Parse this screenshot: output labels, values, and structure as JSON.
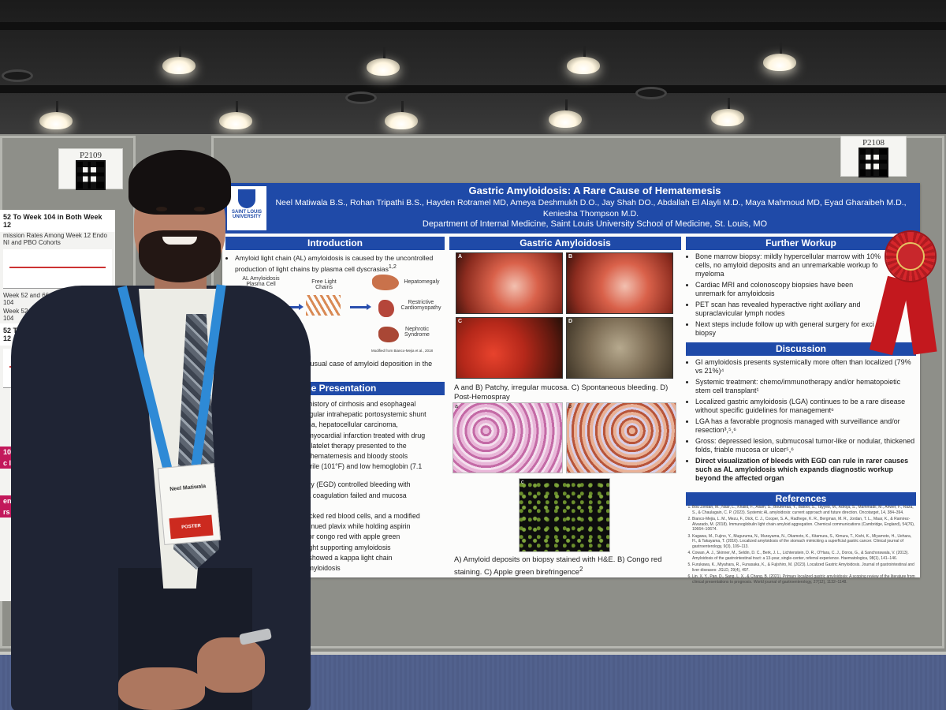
{
  "scene": {
    "booth_labels": [
      "P2109",
      "P2108"
    ]
  },
  "left_poster": {
    "lines": [
      "52 To Week 104 in Both Week 12",
      "mission Rates Among Week 12 Endo NI and PBO Cohorts",
      "Week 52 and 66.7% (22/33) at Week 104",
      "Week 52 and 61.0% (25/41) at Week 104",
      "52 To Week 104 in Both Week 12",
      "104 Effic",
      "c Impro",
      "end Hos",
      "rs"
    ]
  },
  "poster": {
    "logo_text": "SAINT LOUIS UNIVERSITY",
    "title": "Gastric Amyloidosis: A Rare Cause of Hematemesis",
    "authors": "Neel Matiwala B.S., Rohan Tripathi B.S., Hayden Rotramel MD, Ameya Deshmukh D.O., Jay Shah DO., Abdallah El Alayli M.D., Maya Mahmoud MD, Eyad Gharaibeh M.D., Keniesha Thompson M.D.",
    "department": "Department of Internal Medicine, Saint Louis University School of Medicine, St. Louis, MO",
    "introduction": {
      "heading": "Introduction",
      "bullet": "Amyloid light chain (AL) amyloidosis is caused by the uncontrolled production of light chains by plasma cell dyscrasias",
      "bullet_sup": "1,2",
      "diagram": {
        "plasma_cell": "AL Amyloidosis Plasma Cell",
        "free_light_chains": "Free Light Chains",
        "organ1": "Hepatomegaly",
        "organ2": "Restrictive Cardiomyopathy",
        "organ3": "Nephrotic Syndrome",
        "credit": "Modified from Bianco-Mejia et al., 2018"
      },
      "tail": "t an unusual case of amyloid deposition in the"
    },
    "case": {
      "heading": "Case Presentation",
      "lines": [
        "e with history of cirrhosis and esophageal",
        "transjugular intrahepatic portosystemic shunt",
        "elanoma, hepatocellular carcinoma,",
        "and a myocardial infarction treated with drug",
        "al antiplatelet therapy presented to the",
        "nt with hematemesis and bloody stools",
        "M), febrile (101°F) and low hemoglobin (7.1",
        "",
        "noscopy (EGD) controlled bleeding with",
        "plasma coagulation failed and mucosa",
        "clips",
        "s of packed red blood cells, and a modified",
        "nt continued plavix while holding aspirin",
        "sitive for congo red with apple green",
        "rized light supporting amyloidosis",
        "scopy showed a kappa light chain",
        "g AL amyloidosis"
      ]
    },
    "gastric": {
      "heading": "Gastric Amyloidosis",
      "endo_letters": [
        "A",
        "B",
        "C",
        "D"
      ],
      "caption1": "A and B) Patchy, irregular mucosa. C) Spontaneous bleeding. D) Post-Hemospray",
      "histo_letters": [
        "a",
        "b",
        "c"
      ],
      "caption2": "A) Amyloid deposits on biopsy stained with H&E. B) Congo red staining. C) Apple green birefringence",
      "caption2_sup": "2"
    },
    "workup": {
      "heading": "Further Workup",
      "bullets": [
        "Bone marrow biopsy: mildly hypercellular marrow with 10% cells, no amyloid deposits and an unremarkable workup fo myeloma",
        "Cardiac MRI and colonoscopy biopsies have been unremark for amyloidosis",
        "PET scan has revealed hyperactive right axillary and supraclavicular lymph nodes",
        "Next steps include follow up with general surgery for exci biopsy"
      ]
    },
    "discussion": {
      "heading": "Discussion",
      "bullets": [
        "GI amyloidosis presents systemically more often than localized (79% vs 21%)⁴",
        "Systemic treatment: chemo/immunotherapy and/or hematopoietic stem cell transplant¹",
        "Localized gastric amyloidosis (LGA) continues to be a rare disease without specific guidelines for management⁶",
        "LGA has a favorable prognosis managed with surveillance and/or resection³,⁵,⁶",
        "Gross: depressed lesion, submucosal tumor-like or nodular, thickened folds, friable mucosa or ulcer⁵,⁶"
      ],
      "bold_bullet": "Direct visualization of bleeds with EGD can rule in rarer causes such as AL amyloidosis which expands diagnostic workup beyond the affected organ"
    },
    "references": {
      "heading": "References",
      "items": [
        "Bou Zerdan, M., Nasr, L., Khalid, F., Allam, S., Bouferraa, Y., Batool, S., Tayyeb, M., Adroja, S., Mammadii, M., Anwer, F., Raza, S., & Chaulagain, C. P. (2023). Systemic AL amyloidosis: current approach and future direction. Oncotarget, 14, 384–394.",
        "Bianco-Mejia, L. M., Mezu, F., Dick, C. J., Cooper, S. A., Radhege, K. R., Bergman, M. R., Jordan, T. L., Maar, K., & Ramirez-Alvarado, M. (2018). Immunoglobulin light chain amyloid aggregation. Chemical communications (Cambridge, England), 54(76), 10664–10674.",
        "Kagawa, M., Fujino, Y., Muguruma, N., Murayama, N., Okamoto, K., Kitamura, S., Kimura, T., Kishi, K., Miyamoto, H., Uehara, H., & Takayama, T. (2016). Localized amyloidosis of the stomach mimicking a superficial gastric cancer. Clinical journal of gastroenterology, 9(3), 109–113.",
        "Cowan, A. J., Skinner, M., Seldin, D. C., Berk, J. L., Lichtenstein, D. R., O'Hara, C. J., Doros, G., & Sanchorawala, V. (2013). Amyloidosis of the gastrointestinal tract: a 13-year, single-center, referral experience. Haematologica, 98(1), 141–146.",
        "Furukawa, K., Miyahara, R., Funasaka, K., & Fujishiro, M. (2023). Localized Gastric Amyloidosis. Journal of gastrointestinal and liver diseases: JGLD, 29(4), 497.",
        "Lin, X. Y., Pan, D., Sang, L. X., & Chang, B. (2021). Primary localized gastric amyloidosis: A scoping review of the literature from clinical presentations to prognosis. World journal of gastroenterology, 27(12), 1132–1148."
      ]
    }
  },
  "badge": {
    "name": "Neel Matiwala",
    "banner": "POSTER"
  }
}
